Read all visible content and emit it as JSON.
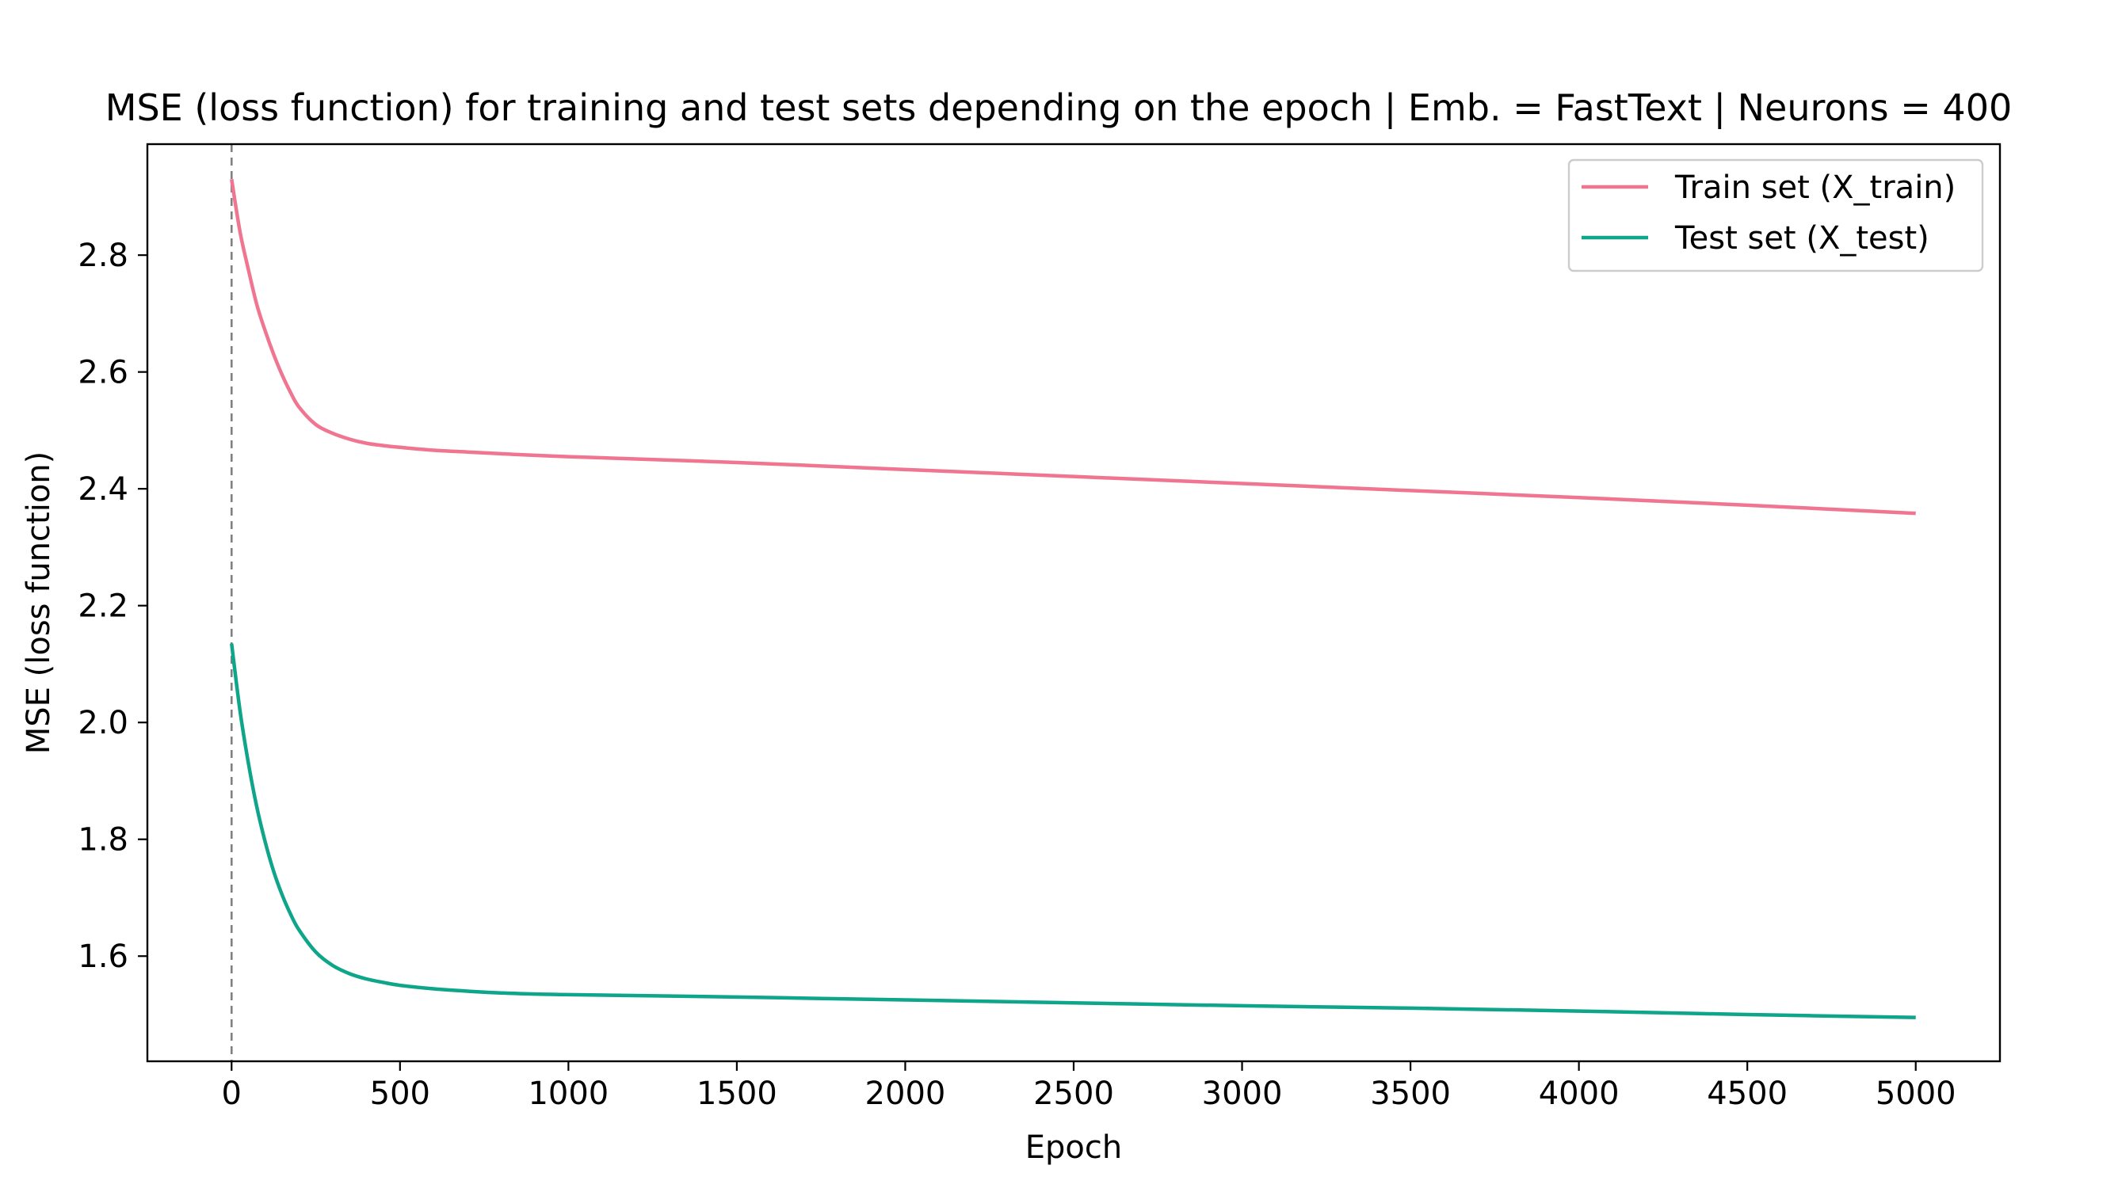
{
  "chart_data": {
    "type": "line",
    "title": "MSE (loss function) for training and test sets depending on the epoch | Emb. = FastText | Neurons = 400",
    "xlabel": "Epoch",
    "ylabel": "MSE (loss function)",
    "xlim": [
      -250,
      5250
    ],
    "ylim": [
      1.42,
      2.99
    ],
    "xticks": [
      0,
      500,
      1000,
      1500,
      2000,
      2500,
      3000,
      3500,
      4000,
      4500,
      5000
    ],
    "yticks": [
      1.6,
      1.8,
      2.0,
      2.2,
      2.4,
      2.6,
      2.8
    ],
    "xtick_labels": [
      "0",
      "500",
      "1000",
      "1500",
      "2000",
      "2500",
      "3000",
      "3500",
      "4000",
      "4500",
      "5000"
    ],
    "ytick_labels": [
      "1.6",
      "1.8",
      "2.0",
      "2.2",
      "2.4",
      "2.6",
      "2.8"
    ],
    "grid": false,
    "legend_position": "top-right",
    "vline": {
      "x": 0,
      "style": "dashed",
      "color": "#808080"
    },
    "series": [
      {
        "name": "Train set (X_train)",
        "color": "#f07590",
        "x": [
          0,
          25,
          50,
          75,
          100,
          125,
          150,
          175,
          200,
          250,
          300,
          350,
          400,
          450,
          500,
          600,
          700,
          800,
          1000,
          1500,
          2000,
          2500,
          3000,
          3500,
          4000,
          4500,
          5000
        ],
        "y": [
          2.93,
          2.84,
          2.775,
          2.715,
          2.67,
          2.63,
          2.595,
          2.565,
          2.54,
          2.51,
          2.495,
          2.485,
          2.478,
          2.474,
          2.471,
          2.466,
          2.463,
          2.46,
          2.455,
          2.445,
          2.433,
          2.421,
          2.409,
          2.397,
          2.385,
          2.372,
          2.358
        ]
      },
      {
        "name": "Test set (X_test)",
        "color": "#0ea58a",
        "x": [
          0,
          25,
          50,
          75,
          100,
          125,
          150,
          175,
          200,
          250,
          300,
          350,
          400,
          450,
          500,
          600,
          700,
          800,
          1000,
          1500,
          2000,
          2500,
          3000,
          3500,
          4000,
          4500,
          5000
        ],
        "y": [
          2.135,
          2.02,
          1.93,
          1.855,
          1.795,
          1.745,
          1.705,
          1.672,
          1.645,
          1.607,
          1.584,
          1.57,
          1.561,
          1.555,
          1.55,
          1.544,
          1.54,
          1.537,
          1.534,
          1.53,
          1.525,
          1.52,
          1.515,
          1.511,
          1.506,
          1.5,
          1.495
        ]
      }
    ]
  }
}
